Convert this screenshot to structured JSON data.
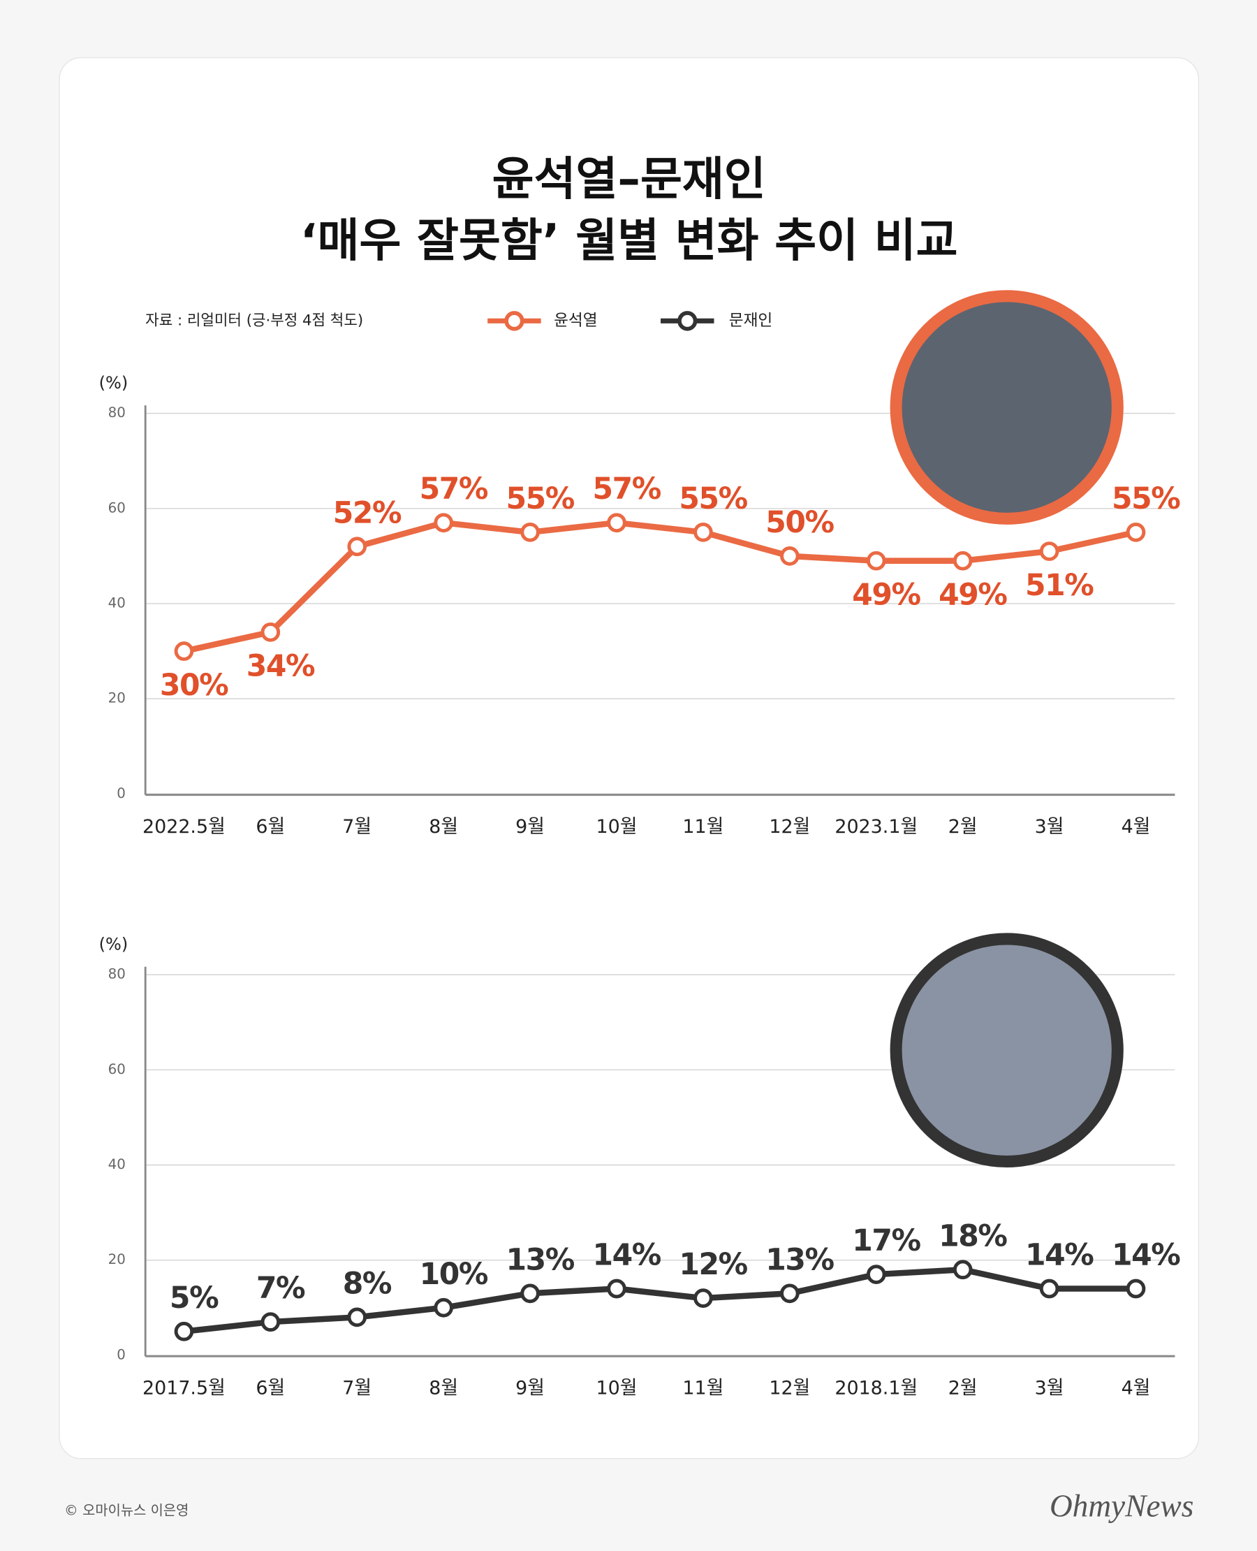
{
  "title_lines": [
    "윤석열–문재인",
    "‘매우 잘못함’ 월별 변화 추이 비교"
  ],
  "source": "자료 : 리얼미터 (긍·부정 4점 척도)",
  "credit": "© 오마이뉴스 이은영",
  "logo": "OhmyNews",
  "chart_data": [
    {
      "type": "line",
      "y_label": "(%)",
      "ylim": [
        0,
        80
      ],
      "yticks": [
        0,
        20,
        40,
        60,
        80
      ],
      "grid": true,
      "categories": [
        "2022.5월",
        "6월",
        "7월",
        "8월",
        "9월",
        "10월",
        "11월",
        "12월",
        "2023.1월",
        "2월",
        "3월",
        "4월"
      ],
      "series": [
        {
          "name": "윤석열",
          "color": "#ea6a43",
          "values": [
            30,
            34,
            52,
            57,
            55,
            57,
            55,
            50,
            49,
            49,
            51,
            55
          ],
          "value_labels": [
            "30%",
            "34%",
            "52%",
            "57%",
            "55%",
            "57%",
            "55%",
            "50%",
            "49%",
            "49%",
            "51%",
            "55%"
          ]
        }
      ]
    },
    {
      "type": "line",
      "y_label": "(%)",
      "ylim": [
        0,
        80
      ],
      "yticks": [
        0,
        20,
        40,
        60,
        80
      ],
      "grid": true,
      "categories": [
        "2017.5월",
        "6월",
        "7월",
        "8월",
        "9월",
        "10월",
        "11월",
        "12월",
        "2018.1월",
        "2월",
        "3월",
        "4월"
      ],
      "series": [
        {
          "name": "문재인",
          "color": "#333333",
          "values": [
            5,
            7,
            8,
            10,
            13,
            14,
            12,
            13,
            17,
            18,
            14,
            14
          ],
          "value_labels": [
            "5%",
            "7%",
            "8%",
            "10%",
            "13%",
            "14%",
            "12%",
            "13%",
            "17%",
            "18%",
            "14%",
            "14%"
          ]
        }
      ]
    }
  ]
}
